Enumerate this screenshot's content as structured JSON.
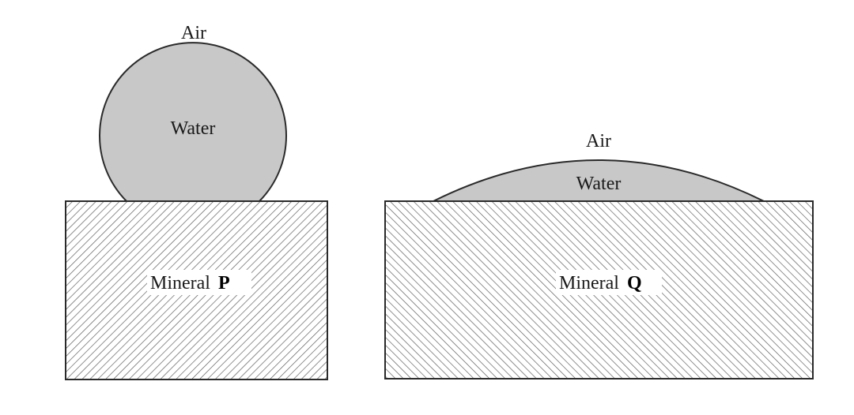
{
  "left_panel": {
    "air_label": "Air",
    "water_label": "Water",
    "mineral_label": "Mineral",
    "mineral_letter": "P"
  },
  "right_panel": {
    "air_label": "Air",
    "water_label": "Water",
    "mineral_label": "Mineral",
    "mineral_letter": "Q"
  },
  "colors": {
    "water_fill": "#c8c8c8",
    "outline": "#2a2a2a",
    "hatch": "#555555",
    "mineral_bg": "#ffffff"
  }
}
